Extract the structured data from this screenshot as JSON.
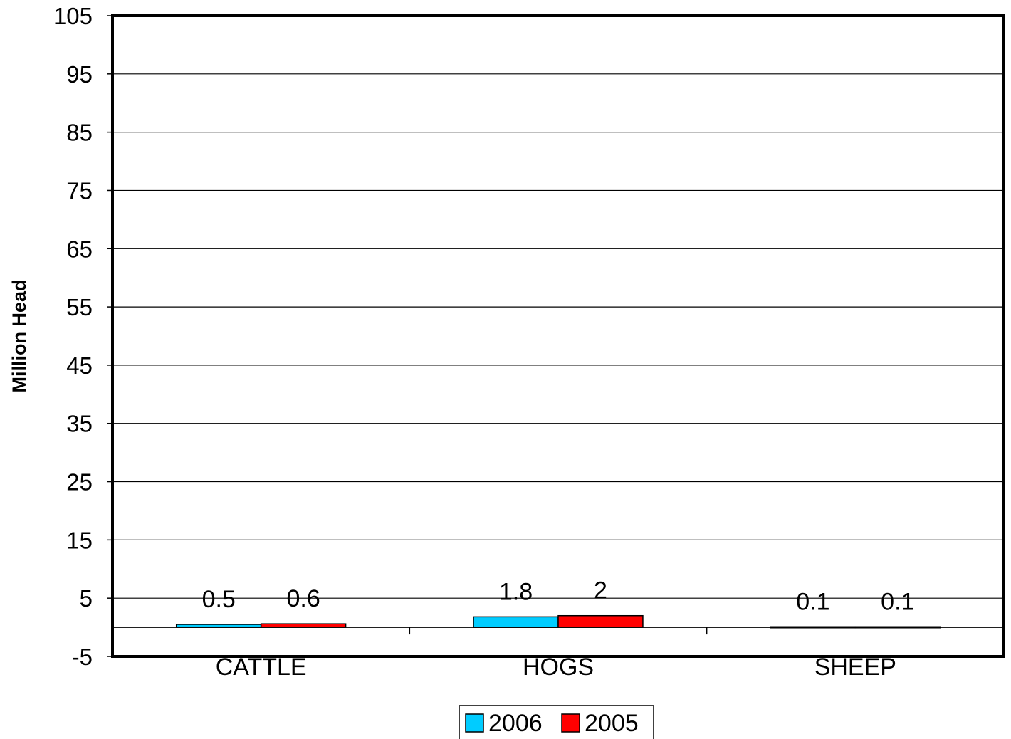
{
  "chart_data": {
    "type": "bar",
    "title": "",
    "xlabel": "",
    "ylabel": "Million Head",
    "ylim": [
      -5,
      105
    ],
    "yticks": [
      -5,
      5,
      15,
      25,
      35,
      45,
      55,
      65,
      75,
      85,
      95,
      105
    ],
    "grid": true,
    "legend_position": "bottom",
    "categories": [
      "CATTLE",
      "HOGS",
      "SHEEP"
    ],
    "series": [
      {
        "name": "2006",
        "color": "#00CCFF",
        "values": [
          0.5,
          1.8,
          0.1
        ],
        "labels": [
          "0.5",
          "1.8",
          "0.1"
        ]
      },
      {
        "name": "2005",
        "color": "#FF0000",
        "values": [
          0.6,
          2,
          0.1
        ],
        "labels": [
          "0.6",
          "2",
          "0.1"
        ]
      }
    ]
  }
}
